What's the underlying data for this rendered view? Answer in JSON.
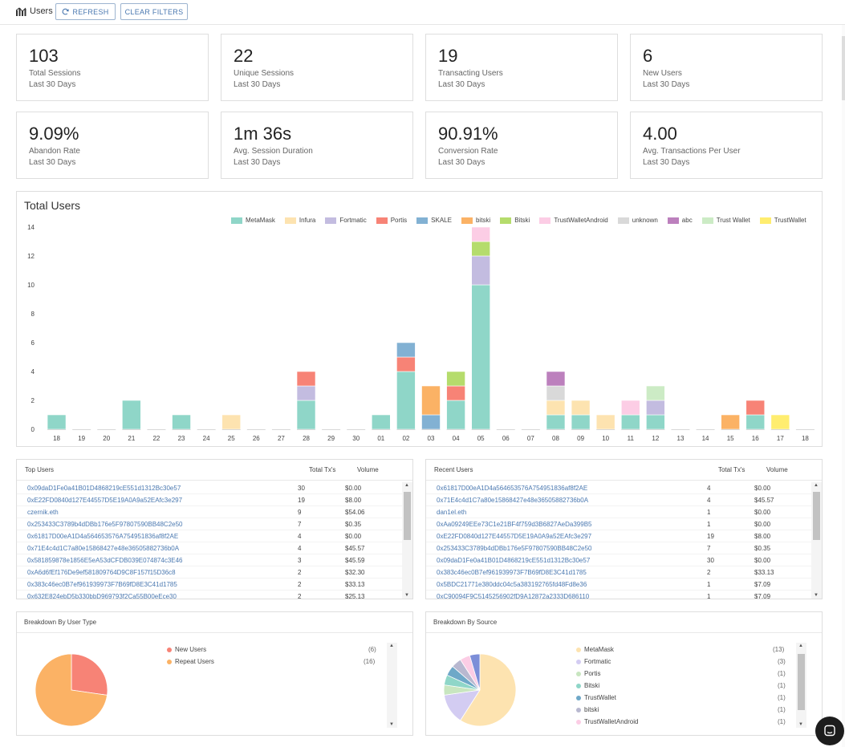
{
  "header": {
    "title": "Users",
    "refresh_label": "REFRESH",
    "clear_filters_label": "CLEAR FILTERS"
  },
  "stats": [
    {
      "value": "103",
      "label": "Total Sessions",
      "sub": "Last 30 Days"
    },
    {
      "value": "22",
      "label": "Unique Sessions",
      "sub": "Last 30 Days"
    },
    {
      "value": "19",
      "label": "Transacting Users",
      "sub": "Last 30 Days"
    },
    {
      "value": "6",
      "label": "New Users",
      "sub": "Last 30 Days"
    },
    {
      "value": "9.09%",
      "label": "Abandon Rate",
      "sub": "Last 30 Days"
    },
    {
      "value": "1m 36s",
      "label": "Avg. Session Duration",
      "sub": "Last 30 Days"
    },
    {
      "value": "90.91%",
      "label": "Conversion Rate",
      "sub": "Last 30 Days"
    },
    {
      "value": "4.00",
      "label": "Avg. Transactions Per User",
      "sub": "Last 30 Days"
    }
  ],
  "chart_data": {
    "type": "bar",
    "stacked": true,
    "title": "Total Users",
    "ylim": [
      0,
      14
    ],
    "yticks": [
      0,
      2,
      4,
      6,
      8,
      10,
      12,
      14
    ],
    "grid": false,
    "legend_position": "top-right",
    "categories": [
      "18",
      "19",
      "20",
      "21",
      "22",
      "23",
      "24",
      "25",
      "26",
      "27",
      "28",
      "29",
      "30",
      "01",
      "02",
      "03",
      "04",
      "05",
      "06",
      "07",
      "08",
      "09",
      "10",
      "11",
      "12",
      "13",
      "14",
      "15",
      "16",
      "17",
      "18"
    ],
    "series": [
      {
        "name": "MetaMask",
        "color": "#8fd6c8",
        "values": [
          1,
          0,
          0,
          2,
          0,
          1,
          0,
          0,
          0,
          0,
          2,
          0,
          0,
          1,
          4,
          0,
          2,
          10,
          0,
          0,
          1,
          1,
          0,
          1,
          1,
          0,
          0,
          0,
          1,
          0,
          0
        ]
      },
      {
        "name": "Infura",
        "color": "#fde3b0",
        "values": [
          0,
          0,
          0,
          0,
          0,
          0,
          0,
          1,
          0,
          0,
          0,
          0,
          0,
          0,
          0,
          0,
          0,
          0,
          0,
          0,
          1,
          1,
          1,
          0,
          0,
          0,
          0,
          0,
          0,
          0,
          0
        ]
      },
      {
        "name": "Fortmatic",
        "color": "#c3bce0",
        "values": [
          0,
          0,
          0,
          0,
          0,
          0,
          0,
          0,
          0,
          0,
          1,
          0,
          0,
          0,
          0,
          0,
          0,
          2,
          0,
          0,
          0,
          0,
          0,
          0,
          1,
          0,
          0,
          0,
          0,
          0,
          0
        ]
      },
      {
        "name": "Portis",
        "color": "#f78376",
        "values": [
          0,
          0,
          0,
          0,
          0,
          0,
          0,
          0,
          0,
          0,
          1,
          0,
          0,
          0,
          1,
          0,
          1,
          0,
          0,
          0,
          0,
          0,
          0,
          0,
          0,
          0,
          0,
          0,
          1,
          0,
          0
        ]
      },
      {
        "name": "SKALE",
        "color": "#82b1d3",
        "values": [
          0,
          0,
          0,
          0,
          0,
          0,
          0,
          0,
          0,
          0,
          0,
          0,
          0,
          0,
          1,
          1,
          0,
          0,
          0,
          0,
          0,
          0,
          0,
          0,
          0,
          0,
          0,
          0,
          0,
          0,
          0
        ]
      },
      {
        "name": "bitski",
        "color": "#fbb265",
        "values": [
          0,
          0,
          0,
          0,
          0,
          0,
          0,
          0,
          0,
          0,
          0,
          0,
          0,
          0,
          0,
          2,
          0,
          0,
          0,
          0,
          0,
          0,
          0,
          0,
          0,
          0,
          0,
          1,
          0,
          0,
          0
        ]
      },
      {
        "name": "Bitski",
        "color": "#b5dc6c",
        "values": [
          0,
          0,
          0,
          0,
          0,
          0,
          0,
          0,
          0,
          0,
          0,
          0,
          0,
          0,
          0,
          0,
          1,
          1,
          0,
          0,
          0,
          0,
          0,
          0,
          0,
          0,
          0,
          0,
          0,
          0,
          0
        ]
      },
      {
        "name": "TrustWalletAndroid",
        "color": "#fccde5",
        "values": [
          0,
          0,
          0,
          0,
          0,
          0,
          0,
          0,
          0,
          0,
          0,
          0,
          0,
          0,
          0,
          0,
          0,
          1,
          0,
          0,
          0,
          0,
          0,
          1,
          0,
          0,
          0,
          0,
          0,
          0,
          0
        ]
      },
      {
        "name": "unknown",
        "color": "#d9d9d9",
        "values": [
          0,
          0,
          0,
          0,
          0,
          0,
          0,
          0,
          0,
          0,
          0,
          0,
          0,
          0,
          0,
          0,
          0,
          0,
          0,
          0,
          1,
          0,
          0,
          0,
          0,
          0,
          0,
          0,
          0,
          0,
          0
        ]
      },
      {
        "name": "abc",
        "color": "#bc80bd",
        "values": [
          0,
          0,
          0,
          0,
          0,
          0,
          0,
          0,
          0,
          0,
          0,
          0,
          0,
          0,
          0,
          0,
          0,
          0,
          0,
          0,
          1,
          0,
          0,
          0,
          0,
          0,
          0,
          0,
          0,
          0,
          0
        ]
      },
      {
        "name": "Trust Wallet",
        "color": "#ccebc5",
        "values": [
          0,
          0,
          0,
          0,
          0,
          0,
          0,
          0,
          0,
          0,
          0,
          0,
          0,
          0,
          0,
          0,
          0,
          0,
          0,
          0,
          0,
          0,
          0,
          0,
          1,
          0,
          0,
          0,
          0,
          0,
          0
        ]
      },
      {
        "name": "TrustWallet",
        "color": "#ffed6f",
        "values": [
          0,
          0,
          0,
          0,
          0,
          0,
          0,
          0,
          0,
          0,
          0,
          0,
          0,
          0,
          0,
          0,
          0,
          0,
          0,
          0,
          0,
          0,
          0,
          0,
          0,
          0,
          0,
          0,
          0,
          1,
          0
        ]
      }
    ]
  },
  "top_users": {
    "title": "Top Users",
    "col_tx": "Total Tx's",
    "col_vol": "Volume",
    "rows": [
      {
        "addr": "0x09daD1Fe0a41B01D4868219cE551d1312Bc30e57",
        "tx": "30",
        "vol": "$0.00"
      },
      {
        "addr": "0xE22FD0840d127E44557D5E19A0A9a52EAfc3e297",
        "tx": "19",
        "vol": "$8.00"
      },
      {
        "addr": "czernik.eth",
        "tx": "9",
        "vol": "$54.06"
      },
      {
        "addr": "0x253433C3789b4dDBb176e5F97807590BB48C2e50",
        "tx": "7",
        "vol": "$0.35"
      },
      {
        "addr": "0x61817D00eA1D4a564653576A754951836af8f2AE",
        "tx": "4",
        "vol": "$0.00"
      },
      {
        "addr": "0x71E4c4d1C7a80e15868427e48e36505882736b0A",
        "tx": "4",
        "vol": "$45.57"
      },
      {
        "addr": "0x581859878e1856E5eA53dCFDB039E074874c3E46",
        "tx": "3",
        "vol": "$45.59"
      },
      {
        "addr": "0xA6d6fEf176De9ef581809764D9C8F157f15D36c8",
        "tx": "2",
        "vol": "$32.30"
      },
      {
        "addr": "0x383c46ec0B7ef961939973F7B69fD8E3C41d1785",
        "tx": "2",
        "vol": "$33.13"
      },
      {
        "addr": "0x632E824ebD5b330bbD969793f2Ca55B00eEce30",
        "tx": "2",
        "vol": "$25.13"
      }
    ]
  },
  "recent_users": {
    "title": "Recent Users",
    "col_tx": "Total Tx's",
    "col_vol": "Volume",
    "rows": [
      {
        "addr": "0x61817D00eA1D4a564653576A754951836af8f2AE",
        "tx": "4",
        "vol": "$0.00"
      },
      {
        "addr": "0x71E4c4d1C7a80e15868427e48e36505882736b0A",
        "tx": "4",
        "vol": "$45.57"
      },
      {
        "addr": "dan1el.eth",
        "tx": "1",
        "vol": "$0.00"
      },
      {
        "addr": "0xAa09249EEe73C1e21BF4f759d3B6827AeDa399B5",
        "tx": "1",
        "vol": "$0.00"
      },
      {
        "addr": "0xE22FD0840d127E44557D5E19A0A9a52EAfc3e297",
        "tx": "19",
        "vol": "$8.00"
      },
      {
        "addr": "0x253433C3789b4dDBb176e5F97807590BB48C2e50",
        "tx": "7",
        "vol": "$0.35"
      },
      {
        "addr": "0x09daD1Fe0a41B01D4868219cE551d1312Bc30e57",
        "tx": "30",
        "vol": "$0.00"
      },
      {
        "addr": "0x383c46ec0B7ef961939973F7B69fD8E3C41d1785",
        "tx": "2",
        "vol": "$33.13"
      },
      {
        "addr": "0x5BDC21771e380ddc04c5a383192765fd48Fd8e36",
        "tx": "1",
        "vol": "$7.09"
      },
      {
        "addr": "0xC90094F9C5145256902fD9A12872a2333D686110",
        "tx": "1",
        "vol": "$7.09"
      }
    ]
  },
  "user_type": {
    "title": "Breakdown By User Type",
    "items": [
      {
        "name": "New Users",
        "count": "(6)",
        "value": 6,
        "color": "#f78376"
      },
      {
        "name": "Repeat Users",
        "count": "(16)",
        "value": 16,
        "color": "#fbb265"
      }
    ]
  },
  "source": {
    "title": "Breakdown By Source",
    "items": [
      {
        "name": "MetaMask",
        "count": "(13)",
        "value": 13,
        "color": "#fde3b0"
      },
      {
        "name": "Fortmatic",
        "count": "(3)",
        "value": 3,
        "color": "#d3ccf2"
      },
      {
        "name": "Portis",
        "count": "(1)",
        "value": 1,
        "color": "#c8e6c0"
      },
      {
        "name": "Bitski",
        "count": "(1)",
        "value": 1,
        "color": "#8fd6c8"
      },
      {
        "name": "TrustWallet",
        "count": "(1)",
        "value": 1,
        "color": "#6fa8c8"
      },
      {
        "name": "bitski",
        "count": "(1)",
        "value": 1,
        "color": "#b8b8d0"
      },
      {
        "name": "TrustWalletAndroid",
        "count": "(1)",
        "value": 1,
        "color": "#fccde5"
      }
    ],
    "extra_slices": [
      {
        "value": 1,
        "color": "#7c8ed8"
      }
    ]
  }
}
